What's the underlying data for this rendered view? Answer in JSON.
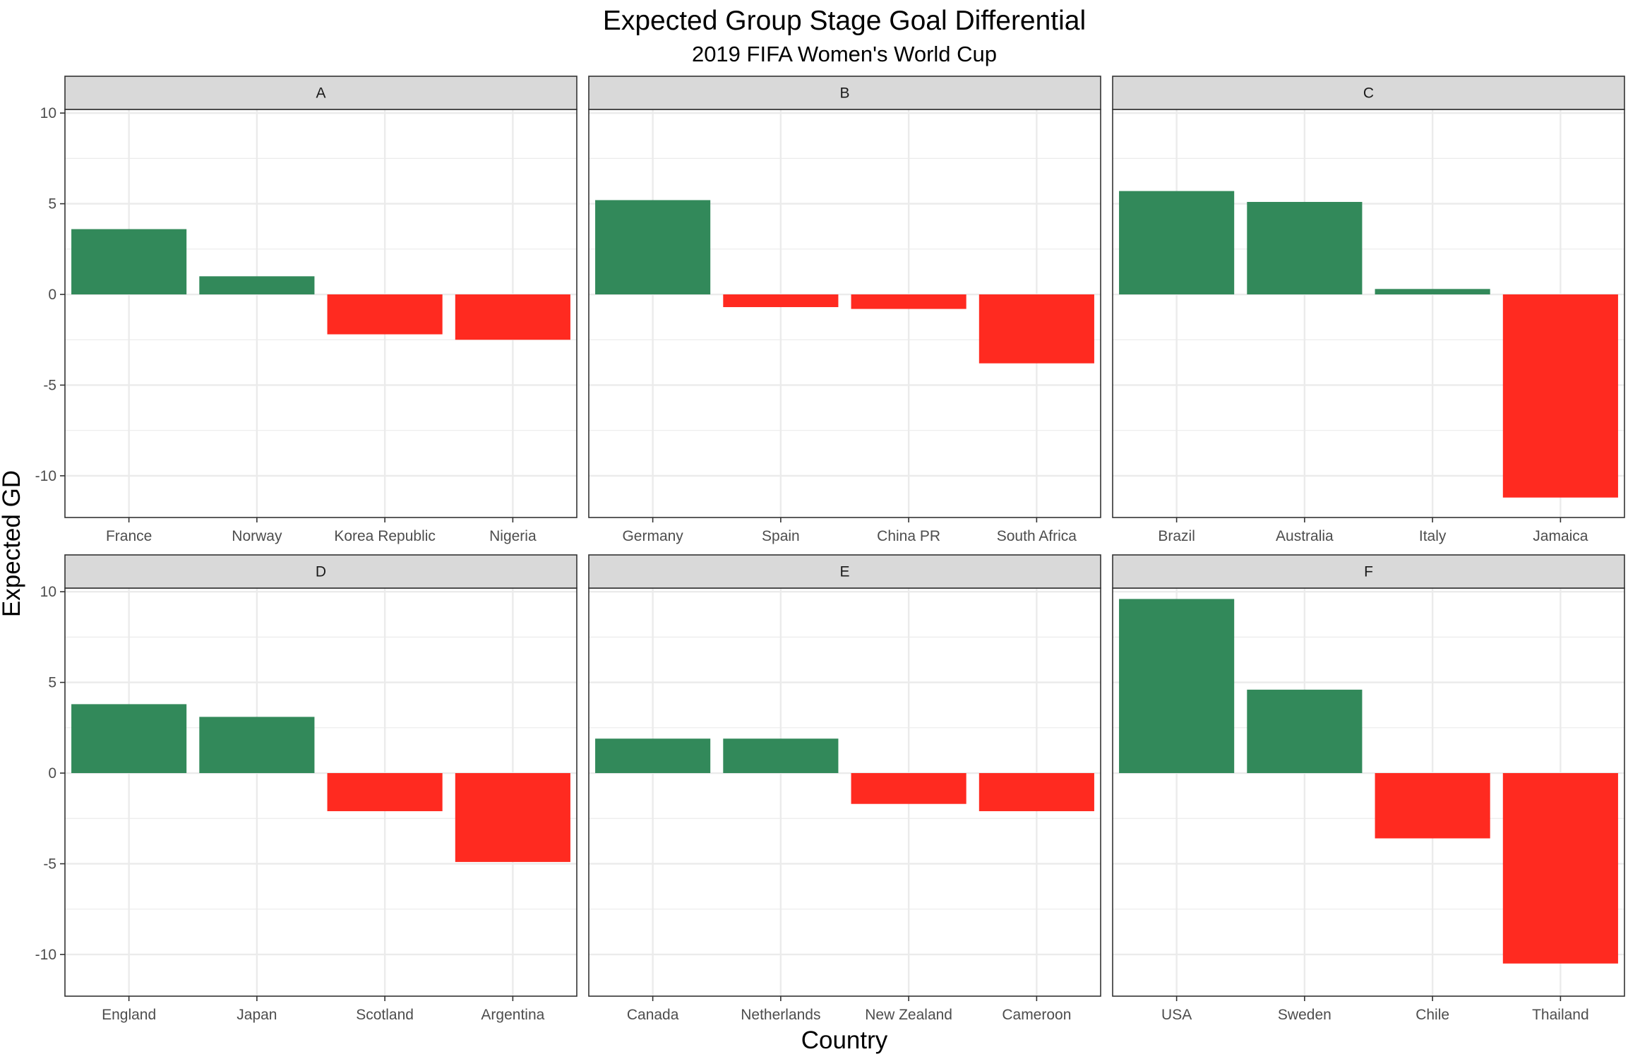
{
  "chart_data": {
    "type": "bar",
    "title": "Expected Group Stage Goal Differential",
    "subtitle": "2019 FIFA Women's World Cup",
    "xlabel": "Country",
    "ylabel": "Expected GD",
    "ylim": [
      -12.3,
      10.2
    ],
    "yticks": [
      -10,
      -5,
      0,
      5,
      10
    ],
    "ytick_labels": [
      "-10",
      "-5",
      "0",
      "5",
      "10"
    ],
    "grid": true,
    "facet_layout": [
      2,
      3
    ],
    "colors": {
      "positive": "#32895A",
      "negative": "#FF2A20",
      "strip": "#D9D9D9",
      "grid": "#EBEBEB",
      "border": "#333333"
    },
    "facets": [
      {
        "group": "A",
        "categories": [
          "France",
          "Norway",
          "Korea Republic",
          "Nigeria"
        ],
        "values": [
          3.6,
          1.0,
          -2.2,
          -2.5
        ]
      },
      {
        "group": "B",
        "categories": [
          "Germany",
          "Spain",
          "China PR",
          "South Africa"
        ],
        "values": [
          5.2,
          -0.7,
          -0.8,
          -3.8
        ]
      },
      {
        "group": "C",
        "categories": [
          "Brazil",
          "Australia",
          "Italy",
          "Jamaica"
        ],
        "values": [
          5.7,
          5.1,
          0.3,
          -11.2
        ]
      },
      {
        "group": "D",
        "categories": [
          "England",
          "Japan",
          "Scotland",
          "Argentina"
        ],
        "values": [
          3.8,
          3.1,
          -2.1,
          -4.9
        ]
      },
      {
        "group": "E",
        "categories": [
          "Canada",
          "Netherlands",
          "New Zealand",
          "Cameroon"
        ],
        "values": [
          1.9,
          1.9,
          -1.7,
          -2.1
        ]
      },
      {
        "group": "F",
        "categories": [
          "USA",
          "Sweden",
          "Chile",
          "Thailand"
        ],
        "values": [
          9.6,
          4.6,
          -3.6,
          -10.5
        ]
      }
    ]
  }
}
